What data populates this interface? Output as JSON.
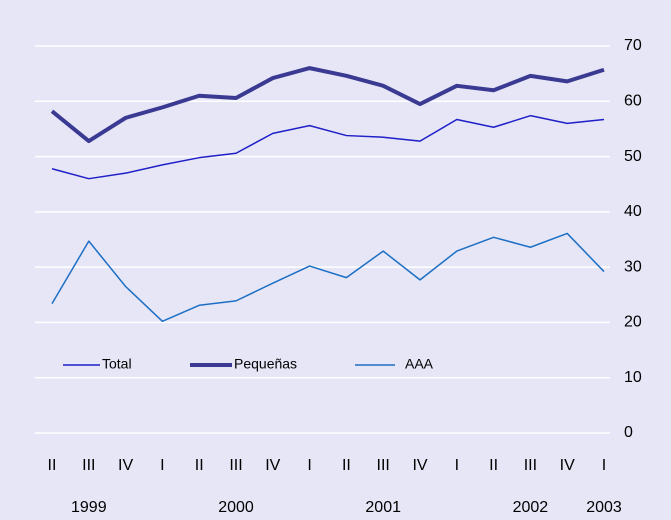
{
  "chart_data": {
    "type": "line",
    "categories": [
      "II",
      "III",
      "IV",
      "I",
      "II",
      "III",
      "IV",
      "I",
      "II",
      "III",
      "IV",
      "I",
      "II",
      "III",
      "IV",
      "I"
    ],
    "year_categories": [
      null,
      "1999",
      null,
      null,
      null,
      "2000",
      null,
      null,
      null,
      "2001",
      null,
      null,
      null,
      "2002",
      null,
      "2003"
    ],
    "series": [
      {
        "name": "Total",
        "color": "#1f1fc8",
        "width": 1.5,
        "values": [
          47.8,
          46.0,
          47.0,
          48.5,
          49.8,
          50.6,
          54.2,
          55.6,
          53.8,
          53.5,
          52.8,
          56.7,
          55.3,
          57.4,
          56.0,
          56.7
        ]
      },
      {
        "name": "Pequeñas",
        "color": "#3b3a92",
        "width": 4,
        "values": [
          58.2,
          52.8,
          57.0,
          58.9,
          61.0,
          60.6,
          64.2,
          66.0,
          64.6,
          62.8,
          59.5,
          62.8,
          62.0,
          64.6,
          63.6,
          65.7
        ]
      },
      {
        "name": "AAA",
        "color": "#1d6fc4",
        "width": 1.5,
        "values": [
          23.4,
          34.7,
          26.5,
          20.2,
          23.1,
          23.9,
          27.1,
          30.2,
          28.1,
          32.9,
          27.7,
          32.9,
          35.4,
          33.6,
          36.1,
          29.2
        ]
      }
    ],
    "ylim": [
      0,
      70
    ],
    "yticks": [
      0,
      10,
      20,
      30,
      40,
      50,
      60,
      70
    ],
    "grid": true,
    "y_axis_side": "right",
    "legend": "bottom-left"
  }
}
